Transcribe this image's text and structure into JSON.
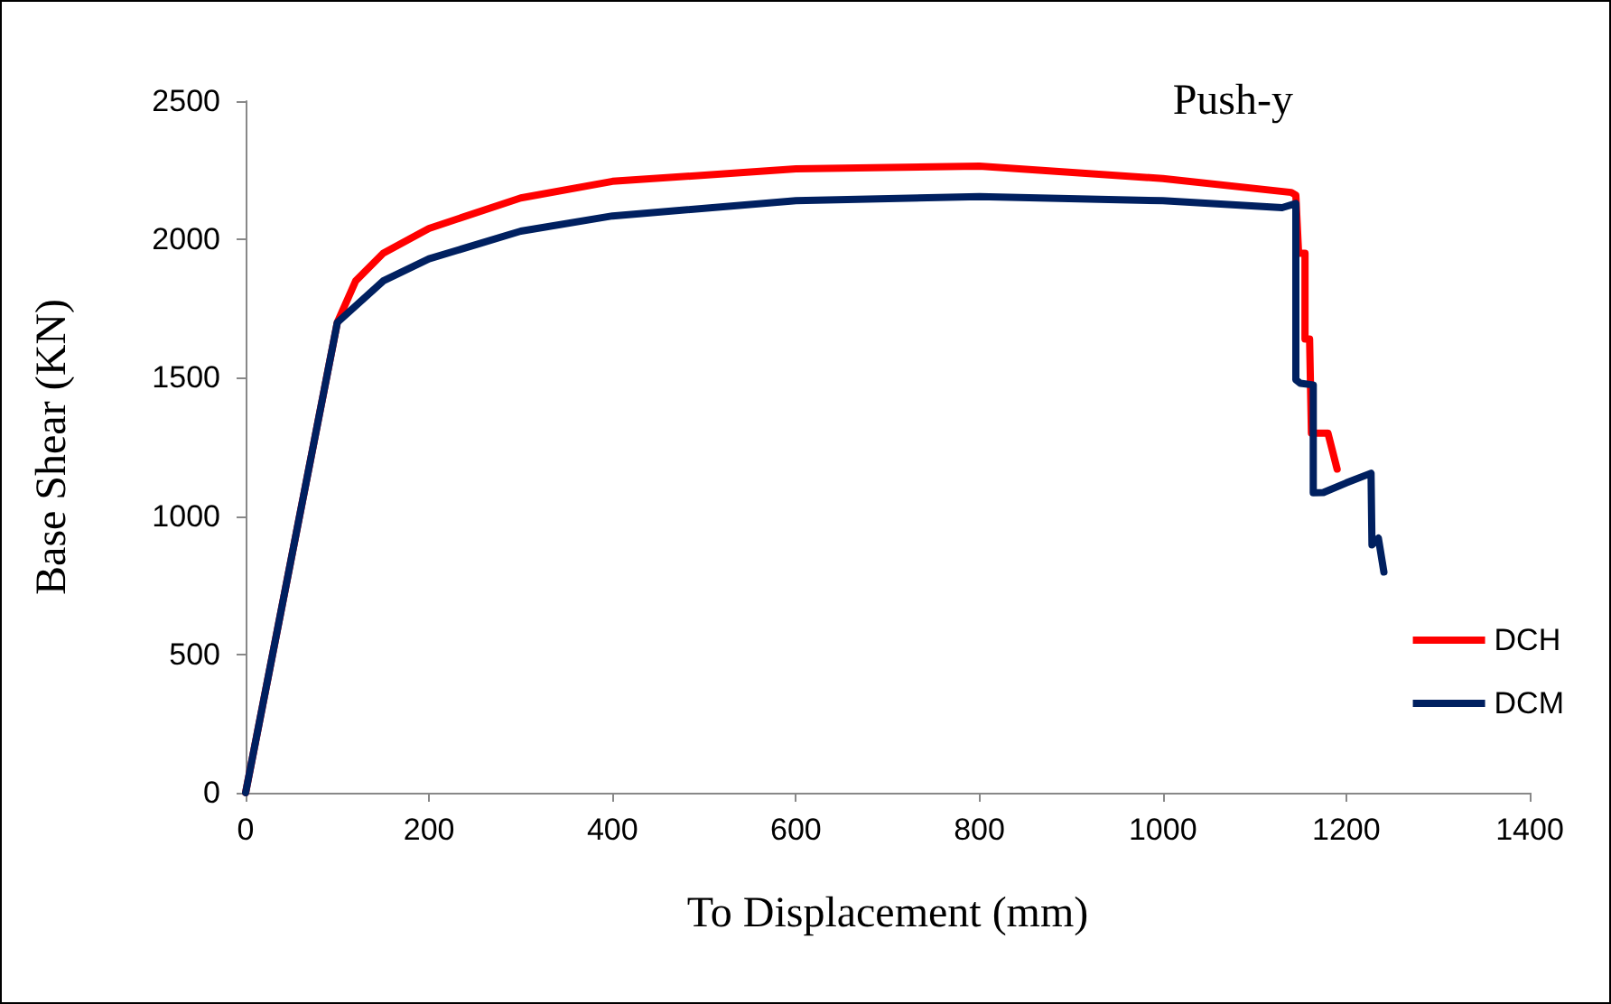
{
  "chart_data": {
    "type": "line",
    "title": "Push-y",
    "xlabel": "To Displacement (mm)",
    "ylabel": "Base Shear (KN)",
    "xlim": [
      0,
      1400
    ],
    "xticks": [
      0,
      200,
      400,
      600,
      800,
      1000,
      1200,
      1400
    ],
    "ylim": [
      0,
      2500
    ],
    "yticks": [
      0,
      500,
      1000,
      1500,
      2000,
      2500
    ],
    "grid": false,
    "legend": "right",
    "marker": "none",
    "line_style": "solid",
    "series": [
      {
        "name": "DCH",
        "color": "#ff0000",
        "x": [
          0,
          50,
          100,
          120,
          150,
          200,
          300,
          400,
          600,
          800,
          1000,
          1140,
          1145,
          1148,
          1155,
          1155,
          1160,
          1162,
          1180,
          1190
        ],
        "values": [
          0,
          850,
          1700,
          1850,
          1950,
          2040,
          2150,
          2210,
          2255,
          2265,
          2220,
          2170,
          2160,
          1950,
          1950,
          1640,
          1640,
          1300,
          1300,
          1170
        ]
      },
      {
        "name": "DCM",
        "color": "#002060",
        "x": [
          0,
          50,
          100,
          150,
          200,
          300,
          400,
          600,
          800,
          1000,
          1130,
          1145,
          1145,
          1150,
          1164,
          1164,
          1175,
          1200,
          1227,
          1228,
          1235,
          1241
        ],
        "values": [
          0,
          850,
          1700,
          1850,
          1930,
          2030,
          2085,
          2140,
          2155,
          2140,
          2115,
          2130,
          1493,
          1480,
          1474,
          1084,
          1085,
          1120,
          1155,
          896,
          920,
          798
        ]
      }
    ]
  }
}
